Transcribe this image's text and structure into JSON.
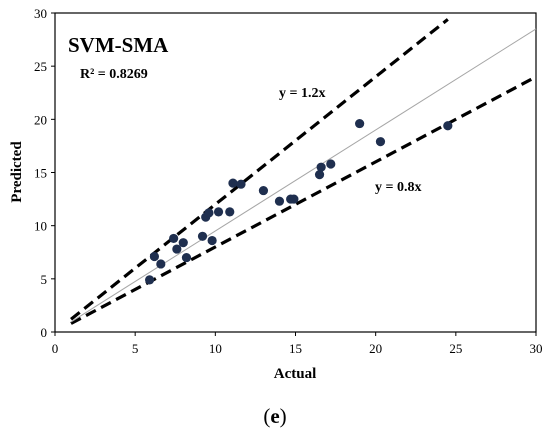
{
  "chart_data": {
    "type": "scatter",
    "title": "SVM-SMA",
    "r2_label": "R² = 0.8269",
    "xlabel": "Actual",
    "ylabel": "Predicted",
    "xlim": [
      0,
      30
    ],
    "ylim": [
      0,
      30
    ],
    "xticks": [
      0,
      5,
      10,
      15,
      20,
      25,
      30
    ],
    "yticks": [
      0,
      5,
      10,
      15,
      20,
      25,
      30
    ],
    "grid": false,
    "marker_color": "#1f2f4f",
    "reference_lines": [
      {
        "label": "y = 1.2x",
        "slope": 1.2,
        "style": "dashed"
      },
      {
        "label": "y = 0.8x",
        "slope": 0.8,
        "style": "dashed"
      },
      {
        "label": "",
        "slope": 0.95,
        "style": "solid-thin"
      }
    ],
    "points": [
      {
        "x": 5.9,
        "y": 4.9
      },
      {
        "x": 6.2,
        "y": 7.1
      },
      {
        "x": 6.6,
        "y": 6.4
      },
      {
        "x": 7.4,
        "y": 8.8
      },
      {
        "x": 7.6,
        "y": 7.8
      },
      {
        "x": 8.0,
        "y": 8.4
      },
      {
        "x": 8.2,
        "y": 7.0
      },
      {
        "x": 9.2,
        "y": 9.0
      },
      {
        "x": 9.4,
        "y": 10.8
      },
      {
        "x": 9.6,
        "y": 11.2
      },
      {
        "x": 9.8,
        "y": 8.6
      },
      {
        "x": 10.2,
        "y": 11.3
      },
      {
        "x": 10.9,
        "y": 11.3
      },
      {
        "x": 11.1,
        "y": 14.0
      },
      {
        "x": 11.6,
        "y": 13.9
      },
      {
        "x": 13.0,
        "y": 13.3
      },
      {
        "x": 14.0,
        "y": 12.3
      },
      {
        "x": 14.7,
        "y": 12.5
      },
      {
        "x": 14.9,
        "y": 12.5
      },
      {
        "x": 16.5,
        "y": 14.8
      },
      {
        "x": 16.6,
        "y": 15.5
      },
      {
        "x": 17.2,
        "y": 15.8
      },
      {
        "x": 19.0,
        "y": 19.6
      },
      {
        "x": 20.3,
        "y": 17.9
      },
      {
        "x": 24.5,
        "y": 19.4
      }
    ]
  },
  "caption": {
    "open": "(",
    "letter": "e",
    "close": ")"
  }
}
